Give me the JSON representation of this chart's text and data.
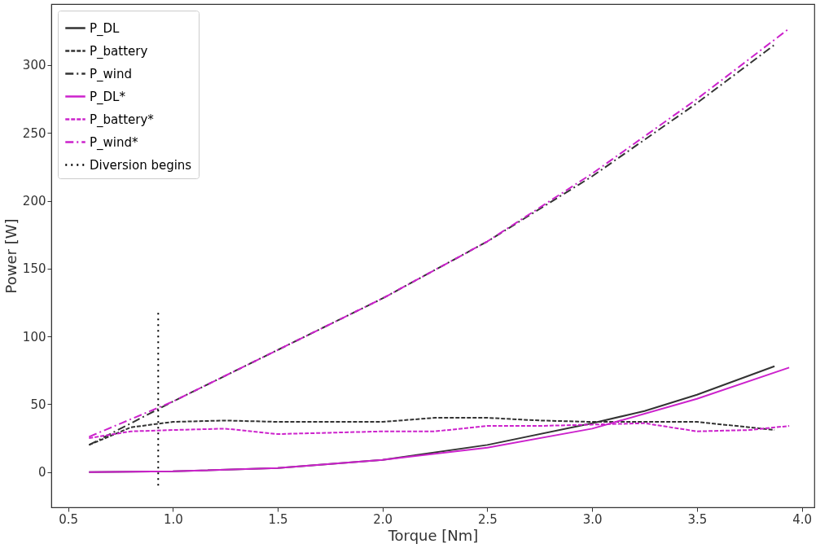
{
  "chart_data": {
    "type": "line",
    "xlabel": "Torque [Nm]",
    "ylabel": "Power [W]",
    "xlim": [
      0.42,
      4.06
    ],
    "ylim": [
      -26,
      345
    ],
    "xticks": [
      0.5,
      {
        "value": 1,
        "label": "1.0"
      },
      1.5,
      {
        "value": 2,
        "label": "2.0"
      },
      2.5,
      {
        "value": 3,
        "label": "3.0"
      },
      3.5,
      {
        "value": 4,
        "label": "4.0"
      }
    ],
    "yticks": [
      0,
      50,
      100,
      150,
      200,
      250,
      300
    ],
    "grid": false,
    "legend": "top left",
    "series": [
      {
        "name": "P_DL",
        "color": "#333333",
        "line_style": "solid",
        "x": [
          0.6,
          1.0,
          1.5,
          2.0,
          2.5,
          3.0,
          3.25,
          3.5,
          3.87
        ],
        "values": [
          0,
          0.5,
          3,
          9,
          20,
          36,
          45,
          57,
          78
        ]
      },
      {
        "name": "P_battery",
        "color": "#333333",
        "line_style": "dashed",
        "x": [
          0.6,
          0.8,
          1.0,
          1.25,
          1.5,
          2.0,
          2.25,
          2.5,
          2.75,
          3.0,
          3.25,
          3.5,
          3.75,
          3.87
        ],
        "values": [
          20,
          33,
          37,
          38,
          37,
          37,
          40,
          40,
          38,
          37,
          37,
          37,
          33,
          31
        ]
      },
      {
        "name": "P_wind",
        "color": "#333333",
        "line_style": "dashdot",
        "x": [
          0.6,
          1.0,
          1.5,
          2.0,
          2.5,
          3.0,
          3.5,
          3.87
        ],
        "values": [
          20,
          52,
          90,
          128,
          170,
          218,
          272,
          315
        ]
      },
      {
        "name": "P_DL*",
        "color": "#cc22cc",
        "line_style": "solid",
        "x": [
          0.6,
          1.0,
          1.5,
          2.0,
          2.5,
          3.0,
          3.5,
          3.94
        ],
        "values": [
          0,
          0.5,
          3,
          9,
          18,
          32,
          54,
          77
        ]
      },
      {
        "name": "P_battery*",
        "color": "#cc22cc",
        "line_style": "dashed",
        "x": [
          0.6,
          0.8,
          1.0,
          1.25,
          1.5,
          1.75,
          2.0,
          2.25,
          2.5,
          2.75,
          3.0,
          3.25,
          3.5,
          3.75,
          3.94
        ],
        "values": [
          25,
          30,
          31,
          32,
          28,
          29,
          30,
          30,
          34,
          34,
          35,
          36,
          30,
          31,
          34
        ]
      },
      {
        "name": "P_wind*",
        "color": "#cc22cc",
        "line_style": "dashdot",
        "x": [
          0.6,
          1.0,
          1.5,
          2.0,
          2.5,
          3.0,
          3.5,
          3.94
        ],
        "values": [
          26,
          52,
          90,
          128,
          170,
          220,
          275,
          327
        ]
      },
      {
        "name": "Diversion begins",
        "color": "#000000",
        "line_style": "dotted",
        "x": [
          0.93,
          0.93
        ],
        "values": [
          -10,
          120
        ]
      }
    ]
  }
}
